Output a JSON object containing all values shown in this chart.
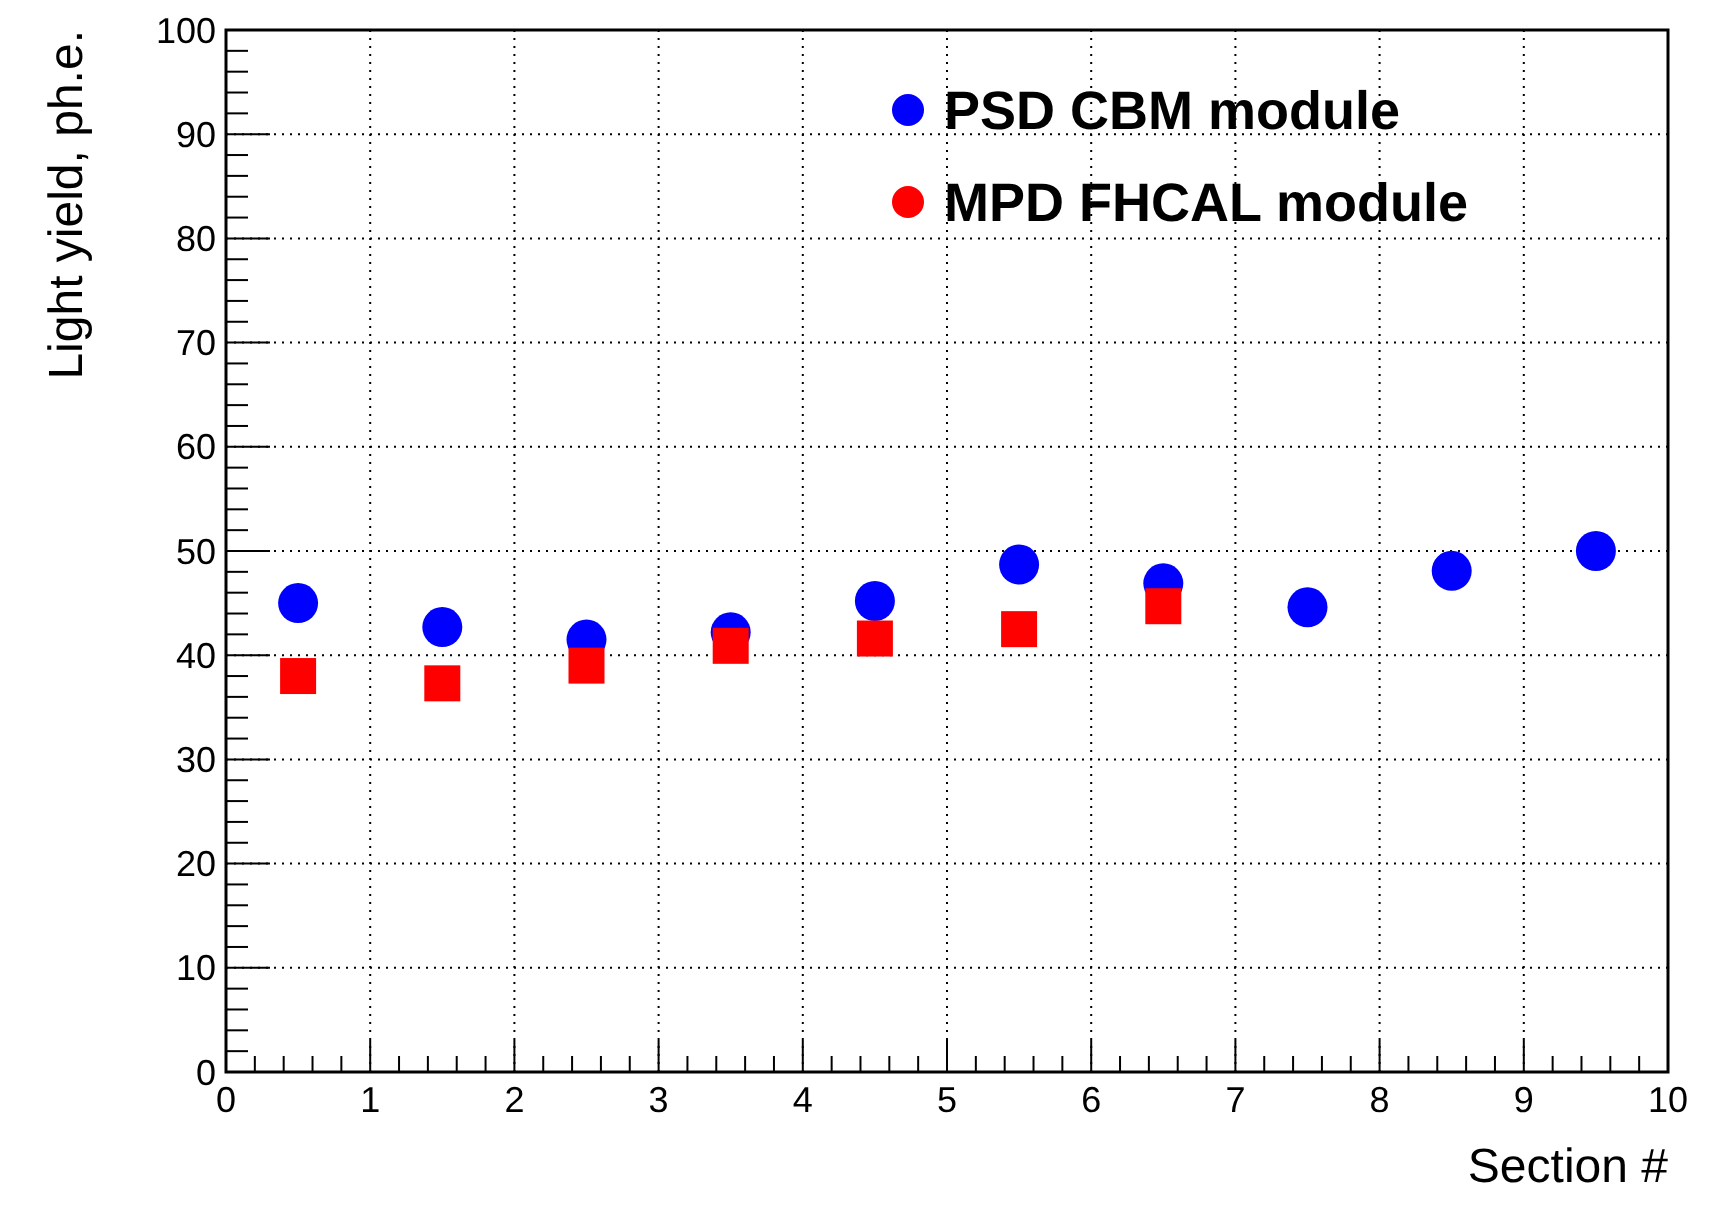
{
  "chart_data": {
    "type": "scatter",
    "xlabel": "Section #",
    "ylabel": "Light yield, ph.e.",
    "xlim": [
      0,
      10
    ],
    "xticks": [
      0,
      1,
      2,
      3,
      4,
      5,
      6,
      7,
      8,
      9,
      10
    ],
    "ylim": [
      0,
      100
    ],
    "yticks": [
      0,
      10,
      20,
      30,
      40,
      50,
      60,
      70,
      80,
      90,
      100
    ],
    "grid": true,
    "legend": "top right",
    "series": [
      {
        "name": "PSD CBM module",
        "color": "#0000ff",
        "marker": "circle",
        "x": [
          0.5,
          1.5,
          2.5,
          3.5,
          4.5,
          5.5,
          6.5,
          7.5,
          8.5,
          9.5
        ],
        "values": [
          45.0,
          42.7,
          41.5,
          42.2,
          45.2,
          48.7,
          46.9,
          44.6,
          48.1,
          50.0
        ]
      },
      {
        "name": "MPD FHCAL module",
        "color": "#ff0000",
        "marker": "square",
        "x": [
          0.5,
          1.5,
          2.5,
          3.5,
          4.5,
          5.5,
          6.5
        ],
        "values": [
          38.0,
          37.3,
          39.0,
          40.9,
          41.6,
          42.5,
          44.7
        ]
      }
    ]
  }
}
